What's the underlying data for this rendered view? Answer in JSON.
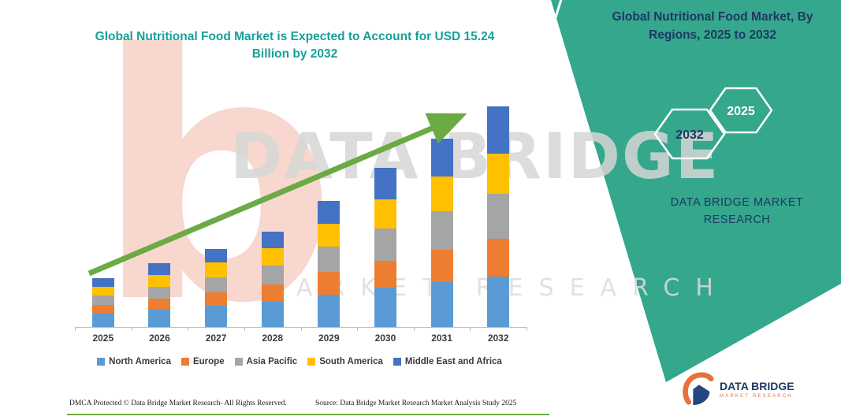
{
  "header": {
    "chart_title": "Global Nutritional Food Market is Expected to Account for USD 15.24 Billion by 2032"
  },
  "right_panel": {
    "title": "Global Nutritional Food Market, By Regions, 2025 to 2032",
    "hexagons": [
      {
        "label": "2032"
      },
      {
        "label": "2025"
      }
    ],
    "brand_text": "DATA BRIDGE MARKET RESEARCH",
    "background_color": "#34A78C",
    "text_color": "#1F3864"
  },
  "watermark": {
    "logo_letter": "b",
    "line1": "DATA BRIDGE",
    "line2": "MARKET RESEARCH"
  },
  "chart_data": {
    "type": "bar",
    "stacked": true,
    "title": "Global Nutritional Food Market is Expected to Account for USD 15.24 Billion by 2032",
    "unit": "USD Billion",
    "categories": [
      "2025",
      "2026",
      "2027",
      "2028",
      "2029",
      "2030",
      "2031",
      "2032"
    ],
    "series": [
      {
        "name": "North America",
        "color": "#5B9BD5",
        "values": [
          0.95,
          1.2,
          1.45,
          1.75,
          2.25,
          2.7,
          3.1,
          3.5
        ]
      },
      {
        "name": "Europe",
        "color": "#ED7D31",
        "values": [
          0.6,
          0.75,
          0.95,
          1.2,
          1.55,
          1.9,
          2.25,
          2.6
        ]
      },
      {
        "name": "Asia Pacific",
        "color": "#A5A5A5",
        "values": [
          0.65,
          0.85,
          1.05,
          1.3,
          1.75,
          2.2,
          2.65,
          3.1
        ]
      },
      {
        "name": "South America",
        "color": "#FFC000",
        "values": [
          0.6,
          0.8,
          1.0,
          1.2,
          1.6,
          2.0,
          2.4,
          2.8
        ]
      },
      {
        "name": "Middle East and Africa",
        "color": "#4472C4",
        "values": [
          0.6,
          0.8,
          0.95,
          1.15,
          1.55,
          2.2,
          2.6,
          3.24
        ]
      }
    ],
    "totals": [
      3.4,
      4.4,
      5.4,
      6.6,
      8.7,
      11.0,
      13.0,
      15.24
    ],
    "ylim": [
      0,
      15.5
    ],
    "grid": false,
    "legend_position": "bottom",
    "trend_arrow": true
  },
  "footer": {
    "dmca": "DMCA Protected © Data Bridge Market Research-  All Rights Reserved.",
    "source": "Source: Data Bridge Market Research  Market Analysis Study 2025"
  },
  "logo": {
    "name": "DATA BRIDGE",
    "tagline": "MARKET RESEARCH"
  },
  "colors": {
    "accent_teal": "#34A78C",
    "title_teal": "#17A09A",
    "navy": "#1F3864",
    "arrow_green": "#6BAA44",
    "underline_green": "#70AD47",
    "logo_orange": "#E8713B"
  }
}
